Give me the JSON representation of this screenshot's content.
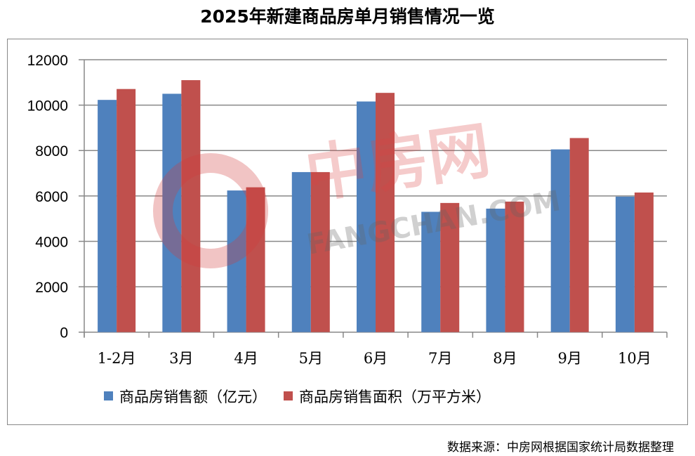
{
  "chart_data": {
    "type": "bar",
    "title": "2025年新建商品房单月销售情况一览",
    "categories": [
      "1-2月",
      "3月",
      "4月",
      "5月",
      "6月",
      "7月",
      "8月",
      "9月",
      "10月"
    ],
    "series": [
      {
        "name": "商品房销售额（亿元）",
        "color": "#4F81BD",
        "values": [
          10230,
          10500,
          6240,
          7050,
          10160,
          5300,
          5440,
          8050,
          5970
        ]
      },
      {
        "name": "商品房销售面积（万平方米）",
        "color": "#C0504D",
        "values": [
          10710,
          11100,
          6380,
          7050,
          10540,
          5690,
          5750,
          8550,
          6150
        ]
      }
    ],
    "ylim": [
      0,
      12000
    ],
    "yticks": [
      0,
      2000,
      4000,
      6000,
      8000,
      10000,
      12000
    ],
    "grid": true,
    "legend": "bottom"
  },
  "watermark": {
    "text_cn": "中房网",
    "text_en": "FANGCHAN.COM"
  },
  "source": "数据来源：中房网根据国家统计局数据整理"
}
